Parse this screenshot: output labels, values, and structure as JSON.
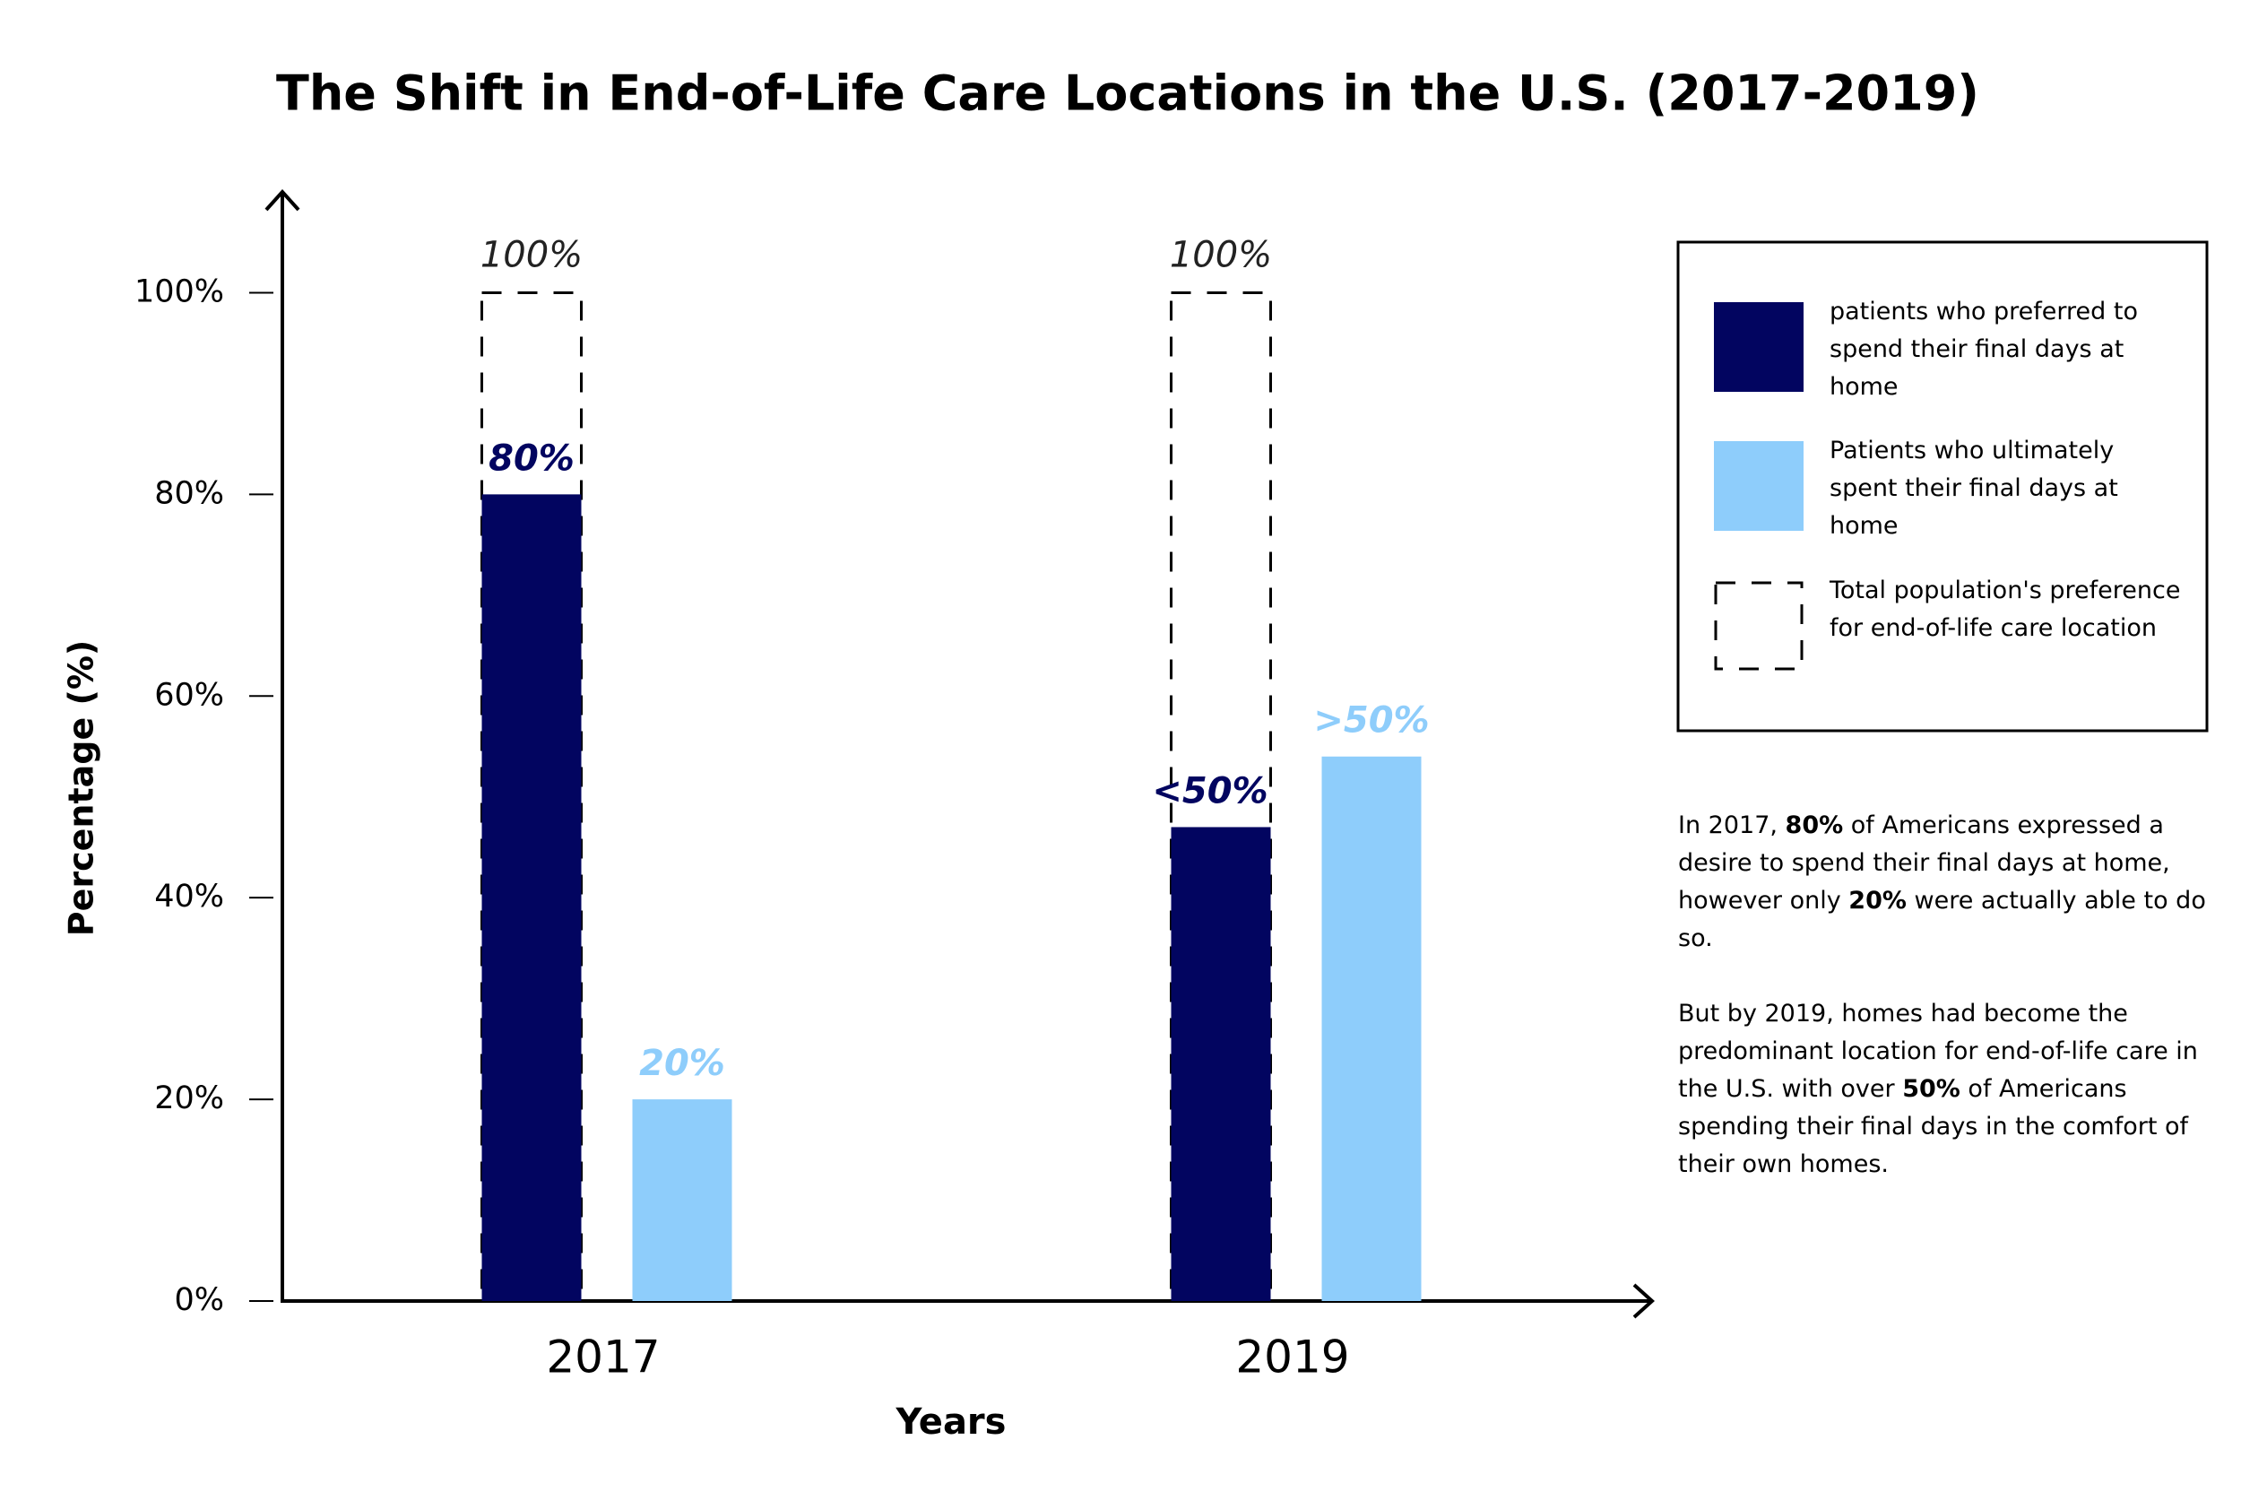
{
  "chart_data": {
    "type": "bar",
    "title": "The Shift in End-of-Life Care Locations in the U.S. (2017-2019)",
    "x_label": "Years",
    "y_label": "Percentage (%)",
    "categories": [
      "2017",
      "2019"
    ],
    "ylim": [
      0,
      110
    ],
    "yticks": [
      {
        "value": 0,
        "label": "0%"
      },
      {
        "value": 20,
        "label": "20%"
      },
      {
        "value": 40,
        "label": "40%"
      },
      {
        "value": 60,
        "label": "60%"
      },
      {
        "value": 80,
        "label": "80%"
      },
      {
        "value": 100,
        "label": "100%"
      }
    ],
    "legend": "right",
    "series": [
      {
        "name": "patients who preferred to spend their final days at home",
        "color": "#020560",
        "style": "solid",
        "values": [
          80,
          47
        ],
        "value_labels": [
          "80%",
          "<50%"
        ]
      },
      {
        "name": "Patients who ultimately spent their final days at home",
        "color": "#8ecdfb",
        "style": "solid",
        "values": [
          20,
          54
        ],
        "value_labels": [
          "20%",
          ">50%"
        ]
      },
      {
        "name": "Total population's preference for end-of-life care location",
        "color": "#000000",
        "style": "dashed",
        "values": [
          100,
          100
        ],
        "value_labels": [
          "100%",
          "100%"
        ]
      }
    ],
    "annotation": [
      [
        {
          "text": "In 2017, "
        },
        {
          "text": "80%",
          "bold": true
        },
        {
          "text": " of Americans expressed a desire to spend their final days at home, however only "
        },
        {
          "text": "20%",
          "bold": true
        },
        {
          "text": " were actually able to do so."
        }
      ],
      [
        {
          "text": "But by 2019, homes had become the predominant location for end-of-life care in the U.S. with over "
        },
        {
          "text": "50%",
          "bold": true
        },
        {
          "text": " of Americans spending their final days in the comfort of their own homes."
        }
      ]
    ]
  }
}
